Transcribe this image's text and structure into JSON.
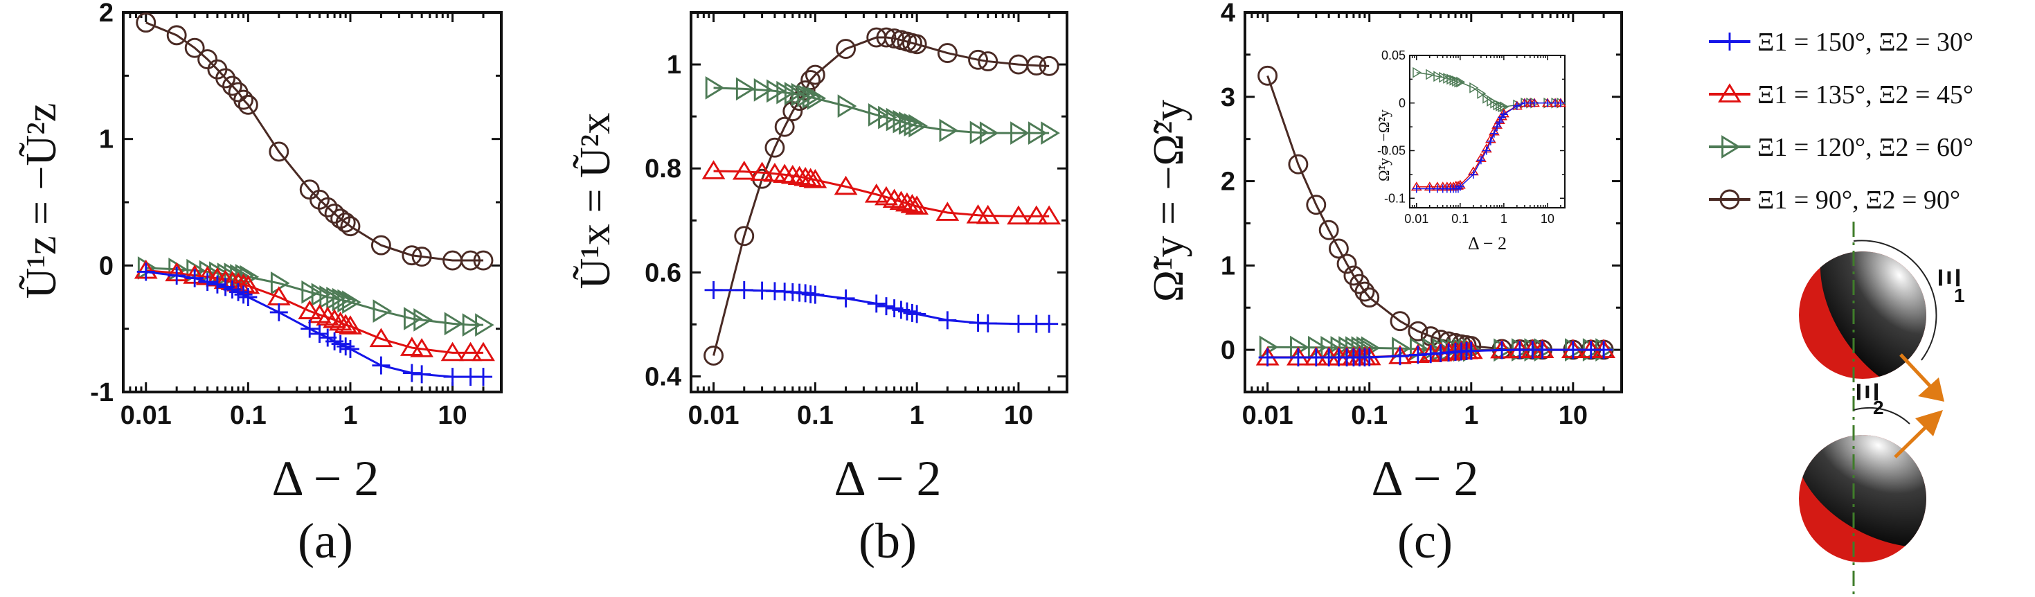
{
  "figure_labels": {
    "xlabel": "Δ − 2",
    "panel_a_label": "(a)",
    "panel_b_label": "(b)",
    "panel_c_label": "(c)",
    "panel_a_ylabel": "Ũ¹z = −Ũ²z",
    "panel_b_ylabel": "Ũ¹x = Ũ²x",
    "panel_c_ylabel": "Ω̃¹y = −Ω̃²y",
    "inset_ylabel": "Ω̃¹y = −Ω̃²y",
    "inset_xlabel": "Δ − 2",
    "xi1_label": "Ξ",
    "xi1_sub": "1",
    "xi2_label": "Ξ",
    "xi2_sub": "2"
  },
  "legend": [
    {
      "label": "Ξ1 = 150°, Ξ2 = 30°",
      "marker": "plus",
      "color": "#1515e8"
    },
    {
      "label": "Ξ1 = 135°, Ξ2 = 45°",
      "marker": "triangle-up",
      "color": "#e01010"
    },
    {
      "label": "Ξ1 = 120°, Ξ2 = 60°",
      "marker": "triangle-right",
      "color": "#4e7b56"
    },
    {
      "label": "Ξ1 = 90°, Ξ2 = 90°",
      "marker": "circle",
      "color": "#4a2a24"
    }
  ],
  "chart_data": [
    {
      "id": "a",
      "type": "line",
      "xscale": "log",
      "xlim": [
        0.006,
        30
      ],
      "ylim": [
        -1,
        2
      ],
      "xticks": [
        0.01,
        0.1,
        1,
        10
      ],
      "xtick_labels": [
        "0.01",
        "0.1",
        "1",
        "10"
      ],
      "yticks": [
        -1,
        0,
        1,
        2
      ],
      "ytick_labels": [
        "-1",
        "0",
        "1",
        "2"
      ],
      "x": [
        0.01,
        0.02,
        0.03,
        0.04,
        0.05,
        0.06,
        0.07,
        0.08,
        0.09,
        0.1,
        0.2,
        0.4,
        0.5,
        0.6,
        0.7,
        0.8,
        0.9,
        1,
        2,
        4,
        5,
        10,
        15,
        20
      ],
      "series": [
        {
          "name": "Ξ1 = 150°, Ξ2 = 30°",
          "values": [
            -0.05,
            -0.08,
            -0.1,
            -0.13,
            -0.15,
            -0.17,
            -0.19,
            -0.21,
            -0.23,
            -0.25,
            -0.37,
            -0.5,
            -0.54,
            -0.57,
            -0.6,
            -0.62,
            -0.64,
            -0.66,
            -0.79,
            -0.85,
            -0.86,
            -0.88,
            -0.88,
            -0.88
          ]
        },
        {
          "name": "Ξ1 = 135°, Ξ2 = 45°",
          "values": [
            -0.04,
            -0.06,
            -0.08,
            -0.09,
            -0.1,
            -0.12,
            -0.13,
            -0.14,
            -0.15,
            -0.16,
            -0.25,
            -0.36,
            -0.39,
            -0.41,
            -0.43,
            -0.45,
            -0.47,
            -0.48,
            -0.58,
            -0.65,
            -0.66,
            -0.69,
            -0.69,
            -0.69
          ]
        },
        {
          "name": "Ξ1 = 120°, Ξ2 = 60°",
          "values": [
            -0.02,
            -0.03,
            -0.04,
            -0.05,
            -0.06,
            -0.07,
            -0.07,
            -0.08,
            -0.08,
            -0.09,
            -0.14,
            -0.21,
            -0.23,
            -0.25,
            -0.26,
            -0.27,
            -0.28,
            -0.29,
            -0.36,
            -0.42,
            -0.43,
            -0.46,
            -0.47,
            -0.47
          ]
        },
        {
          "name": "Ξ1 = 90°, Ξ2 = 90°",
          "values": [
            1.92,
            1.82,
            1.72,
            1.63,
            1.55,
            1.48,
            1.42,
            1.37,
            1.31,
            1.27,
            0.9,
            0.6,
            0.52,
            0.46,
            0.41,
            0.37,
            0.34,
            0.31,
            0.16,
            0.08,
            0.07,
            0.04,
            0.04,
            0.04
          ]
        }
      ]
    },
    {
      "id": "b",
      "type": "line",
      "xscale": "log",
      "xlim": [
        0.006,
        30
      ],
      "ylim": [
        0.37,
        1.1
      ],
      "xticks": [
        0.01,
        0.1,
        1,
        10
      ],
      "xtick_labels": [
        "0.01",
        "0.1",
        "1",
        "10"
      ],
      "yticks": [
        0.4,
        0.6,
        0.8,
        1
      ],
      "ytick_labels": [
        "0.4",
        "0.6",
        "0.8",
        "1"
      ],
      "x": [
        0.01,
        0.02,
        0.03,
        0.04,
        0.05,
        0.06,
        0.07,
        0.08,
        0.09,
        0.1,
        0.2,
        0.4,
        0.5,
        0.6,
        0.7,
        0.8,
        0.9,
        1,
        2,
        4,
        5,
        10,
        15,
        20
      ],
      "series": [
        {
          "name": "Ξ1 = 150°, Ξ2 = 30°",
          "values": [
            0.566,
            0.566,
            0.565,
            0.564,
            0.563,
            0.562,
            0.561,
            0.56,
            0.558,
            0.557,
            0.55,
            0.54,
            0.535,
            0.531,
            0.528,
            0.525,
            0.522,
            0.52,
            0.508,
            0.503,
            0.502,
            0.501,
            0.501,
            0.501
          ]
        },
        {
          "name": "Ξ1 = 135°, Ξ2 = 45°",
          "values": [
            0.795,
            0.794,
            0.792,
            0.79,
            0.788,
            0.786,
            0.784,
            0.782,
            0.78,
            0.778,
            0.765,
            0.75,
            0.745,
            0.74,
            0.736,
            0.733,
            0.73,
            0.727,
            0.715,
            0.71,
            0.709,
            0.708,
            0.708,
            0.708
          ]
        },
        {
          "name": "Ξ1 = 120°, Ξ2 = 60°",
          "values": [
            0.955,
            0.953,
            0.951,
            0.949,
            0.946,
            0.944,
            0.942,
            0.94,
            0.937,
            0.935,
            0.92,
            0.903,
            0.898,
            0.894,
            0.89,
            0.887,
            0.884,
            0.882,
            0.873,
            0.869,
            0.868,
            0.868,
            0.868,
            0.868
          ]
        },
        {
          "name": "Ξ1 = 90°, Ξ2 = 90°",
          "values": [
            0.44,
            0.67,
            0.78,
            0.84,
            0.88,
            0.91,
            0.93,
            0.95,
            0.97,
            0.98,
            1.03,
            1.052,
            1.052,
            1.05,
            1.047,
            1.044,
            1.041,
            1.039,
            1.022,
            1.009,
            1.006,
            1.0,
            0.998,
            0.997
          ]
        }
      ]
    },
    {
      "id": "c",
      "type": "line",
      "xscale": "log",
      "xlim": [
        0.006,
        30
      ],
      "ylim": [
        -0.5,
        4
      ],
      "xticks": [
        0.01,
        0.1,
        1,
        10
      ],
      "xtick_labels": [
        "0.01",
        "0.1",
        "1",
        "10"
      ],
      "yticks": [
        0,
        1,
        2,
        3,
        4
      ],
      "ytick_labels": [
        "0",
        "1",
        "2",
        "3",
        "4"
      ],
      "x": [
        0.01,
        0.02,
        0.03,
        0.04,
        0.05,
        0.06,
        0.07,
        0.08,
        0.09,
        0.1,
        0.2,
        0.3,
        0.4,
        0.5,
        0.6,
        0.7,
        0.8,
        0.9,
        1,
        2,
        3,
        4,
        5,
        10,
        15,
        20
      ],
      "series": [
        {
          "name": "Ξ1 = 150°, Ξ2 = 30°",
          "values": [
            -0.09,
            -0.09,
            -0.09,
            -0.09,
            -0.09,
            -0.09,
            -0.09,
            -0.09,
            -0.09,
            -0.088,
            -0.075,
            -0.06,
            -0.05,
            -0.04,
            -0.032,
            -0.025,
            -0.02,
            -0.015,
            -0.012,
            -0.003,
            0,
            0,
            0,
            0,
            0,
            0
          ]
        },
        {
          "name": "Ξ1 = 135°, Ξ2 = 45°",
          "values": [
            -0.088,
            -0.088,
            -0.088,
            -0.088,
            -0.088,
            -0.088,
            -0.088,
            -0.087,
            -0.087,
            -0.086,
            -0.072,
            -0.058,
            -0.048,
            -0.038,
            -0.03,
            -0.023,
            -0.018,
            -0.014,
            -0.011,
            -0.003,
            0,
            0,
            0,
            0,
            0,
            0
          ]
        },
        {
          "name": "Ξ1 = 120°, Ξ2 = 60°",
          "values": [
            0.032,
            0.03,
            0.028,
            0.027,
            0.026,
            0.025,
            0.024,
            0.023,
            0.022,
            0.022,
            0.016,
            0.01,
            0.005,
            0.002,
            0,
            -0.002,
            -0.003,
            -0.004,
            -0.004,
            -0.002,
            0,
            0,
            0,
            0,
            0,
            0
          ]
        },
        {
          "name": "Ξ1 = 90°, Ξ2 = 90°",
          "values": [
            3.25,
            2.2,
            1.72,
            1.42,
            1.2,
            1.02,
            0.88,
            0.78,
            0.69,
            0.62,
            0.34,
            0.22,
            0.16,
            0.12,
            0.1,
            0.08,
            0.065,
            0.055,
            0.045,
            0.01,
            0.005,
            0.003,
            0.002,
            0.001,
            0.001,
            0.001
          ]
        }
      ],
      "inset": {
        "type": "line",
        "xscale": "log",
        "xlim": [
          0.007,
          25
        ],
        "ylim": [
          -0.11,
          0.05
        ],
        "xticks": [
          0.01,
          0.1,
          1,
          10
        ],
        "xtick_labels": [
          "0.01",
          "0.1",
          "1",
          "10"
        ],
        "yticks": [
          -0.1,
          -0.05,
          0,
          0.05
        ],
        "ytick_labels": [
          "-0.1",
          "-0.05",
          "0",
          "0.05"
        ],
        "series_indices": [
          0,
          1,
          2
        ]
      }
    }
  ]
}
